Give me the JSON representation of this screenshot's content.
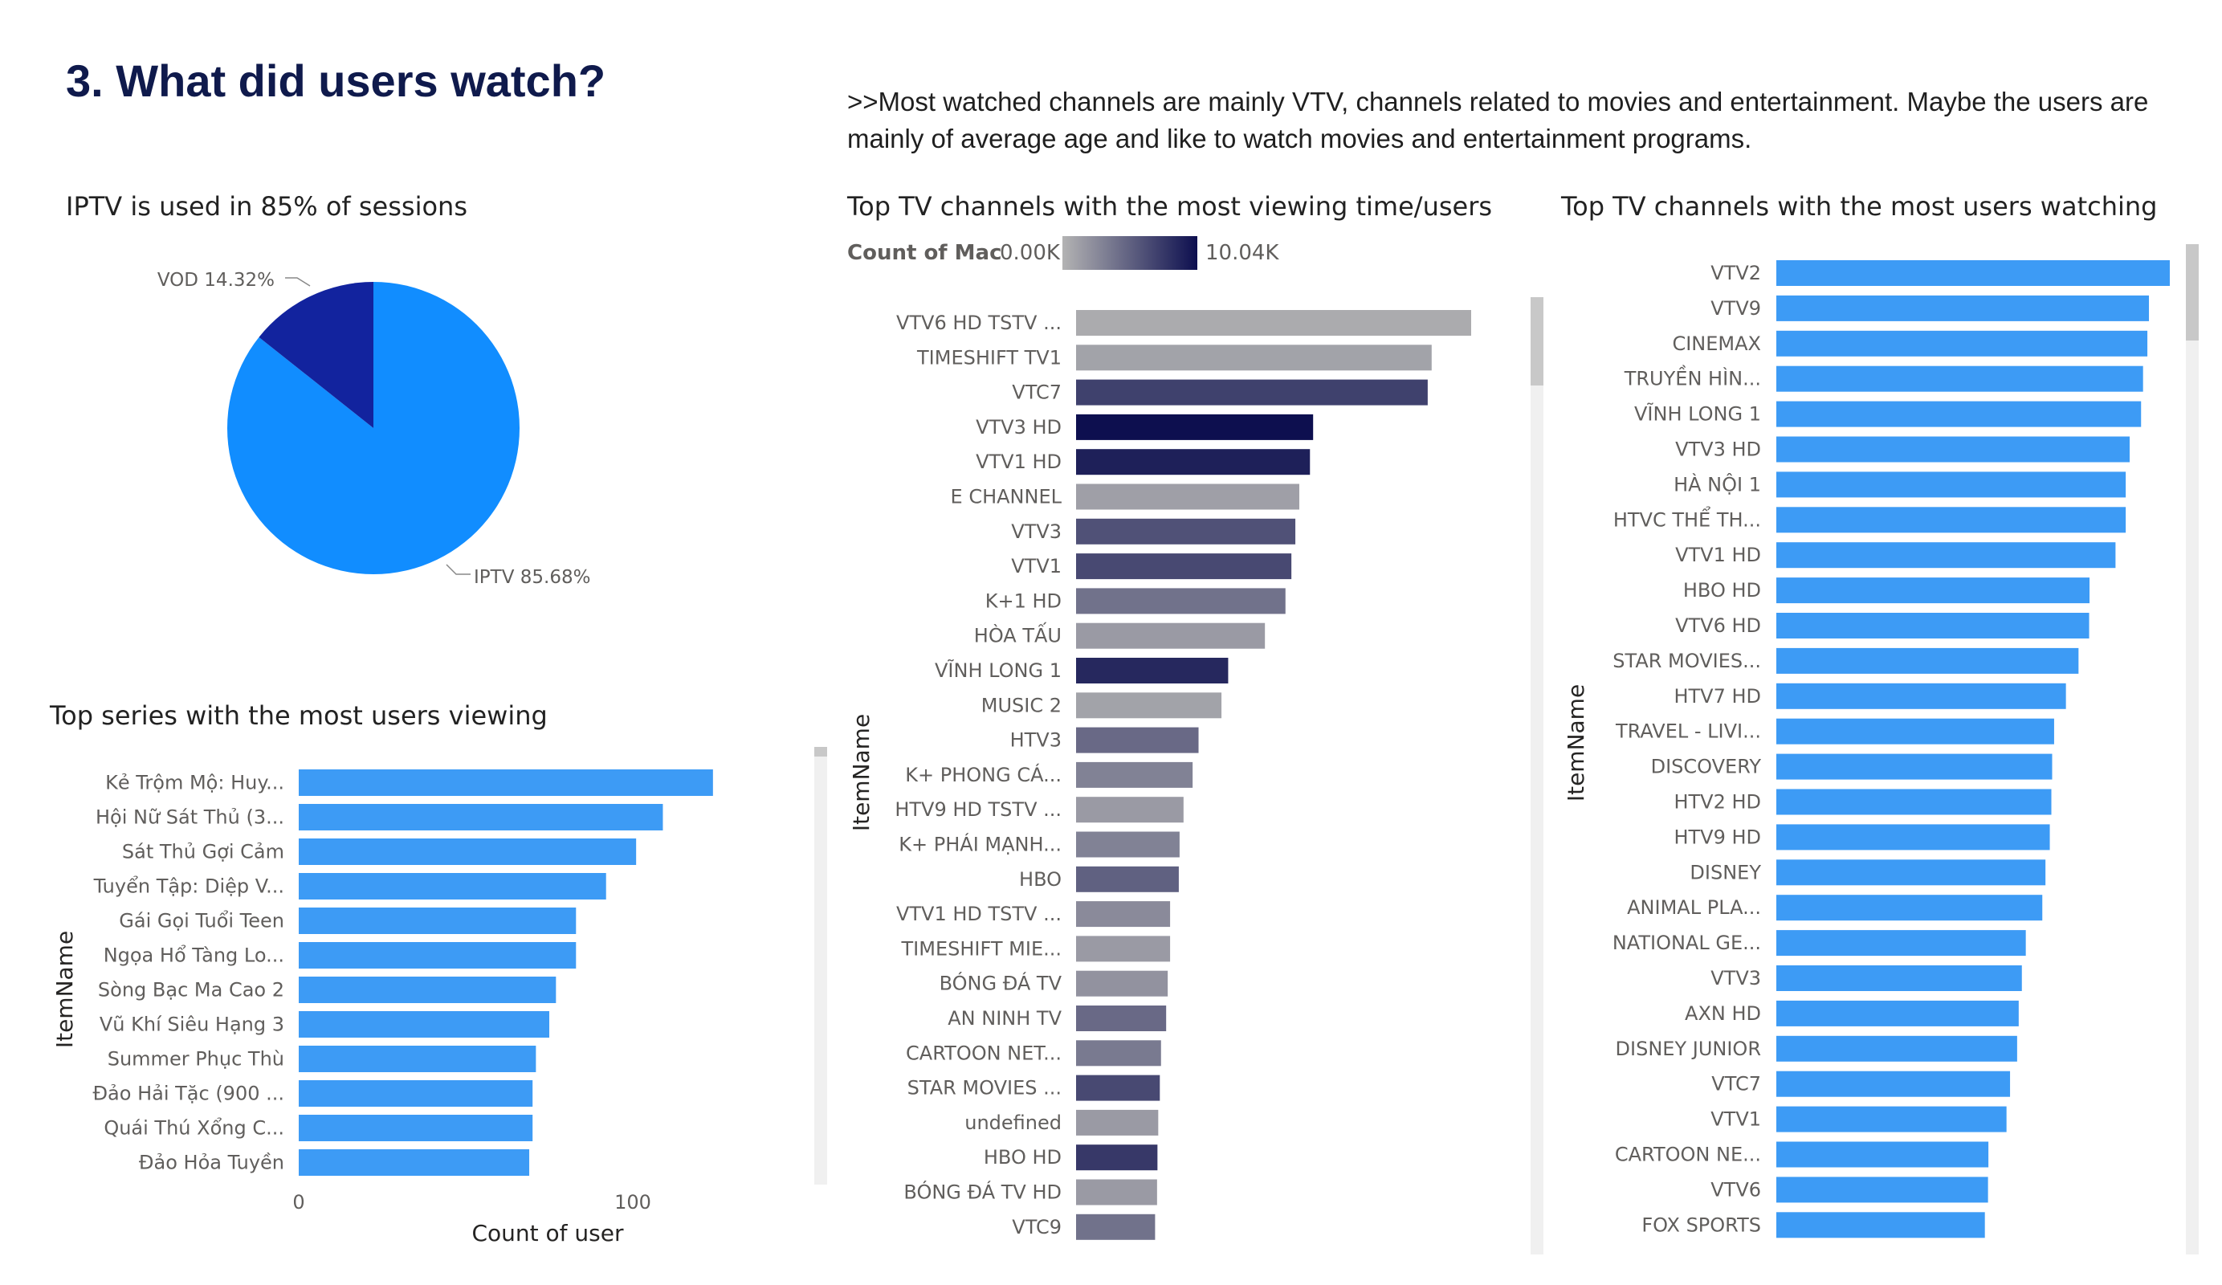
{
  "page": {
    "title": "3. What did users watch?",
    "commentary": ">>Most watched channels are mainly VTV, channels related to movies and entertainment. Maybe the users are mainly of average age and like to watch movies and entertainment programs."
  },
  "colors": {
    "title": "#0f1a4c",
    "bar_blue": "#3d9bf5",
    "pie_iptv": "#118dff",
    "pie_vod": "#12239e",
    "gradient_low": "#b3b3b3",
    "gradient_high": "#0d0f4f",
    "scrollbar_track": "#f0f0f0",
    "scrollbar_thumb": "#c8c8c8"
  },
  "chart_data": [
    {
      "id": "pie",
      "type": "pie",
      "title": "IPTV is used in 85% of sessions",
      "slices": [
        {
          "label": "IPTV",
          "value": 85.68,
          "display": "IPTV 85.68%"
        },
        {
          "label": "VOD",
          "value": 14.32,
          "display": "VOD 14.32%"
        }
      ]
    },
    {
      "id": "series",
      "type": "bar",
      "orientation": "horizontal",
      "title": "Top series with the most users viewing",
      "xlabel": "Count of user",
      "ylabel": "ItemName",
      "xlim": [
        0,
        130
      ],
      "xticks": [
        "0",
        "100"
      ],
      "categories": [
        "Kẻ Trộm Mộ: Huy...",
        "Hội Nữ Sát Thủ (3...",
        "Sát Thủ Gợi Cảm",
        "Tuyển Tập: Diệp V...",
        "Gái Gọi Tuổi Teen",
        "Ngọa Hổ Tàng Lo...",
        "Sòng Bạc Ma Cao 2",
        "Vũ Khí Siêu Hạng 3",
        "Summer Phục Thù",
        "Đảo Hải Tặc (900 ...",
        "Quái Thú Xổng C...",
        "Đảo Hỏa Tuyền"
      ],
      "values": [
        124,
        109,
        101,
        92,
        83,
        83,
        77,
        75,
        71,
        70,
        70,
        69
      ]
    },
    {
      "id": "time",
      "type": "bar",
      "orientation": "horizontal",
      "title": "Top TV channels with the most viewing time/users",
      "ylabel": "ItemName",
      "legend": {
        "label": "Count of Mac",
        "min": "0.00K",
        "max": "10.04K"
      },
      "categories": [
        "VTV6 HD TSTV ...",
        "TIMESHIFT TV1",
        "VTC7",
        "VTV3 HD",
        "VTV1 HD",
        "E CHANNEL",
        "VTV3",
        "VTV1",
        "K+1 HD",
        "HÒA TẤU",
        "VĨNH LONG 1",
        "MUSIC 2",
        "HTV3",
        "K+ PHONG CÁ...",
        "HTV9 HD TSTV ...",
        "K+ PHÁI MẠNH...",
        "HBO",
        "VTV1 HD TSTV ...",
        "TIMESHIFT MIE...",
        "BÓNG ĐÁ TV",
        "AN NINH TV",
        "CARTOON NET...",
        "STAR MOVIES ...",
        "undefined",
        "HBO HD",
        "BÓNG ĐÁ TV HD",
        "VTC9"
      ],
      "values": [
        1000,
        900,
        890,
        600,
        592,
        565,
        555,
        545,
        530,
        478,
        385,
        368,
        310,
        295,
        272,
        262,
        260,
        238,
        238,
        232,
        228,
        215,
        212,
        208,
        206,
        205,
        200
      ],
      "counts": [
        0.5,
        1.0,
        7.0,
        10.04,
        9.0,
        1.2,
        6.0,
        6.5,
        4.0,
        1.5,
        8.5,
        1.0,
        4.5,
        3.0,
        1.5,
        3.0,
        5.0,
        2.5,
        1.5,
        2.0,
        4.5,
        3.5,
        6.5,
        1.5,
        7.5,
        1.5,
        4.0
      ]
    },
    {
      "id": "users",
      "type": "bar",
      "orientation": "horizontal",
      "title": "Top TV channels with the most users watching",
      "ylabel": "ItemName",
      "categories": [
        "VTV2",
        "VTV9",
        "CINEMAX",
        "TRUYỀN HÌN...",
        "VĨNH LONG 1",
        "VTV3 HD",
        "HÀ NỘI 1",
        "HTVC THỂ TH...",
        "VTV1 HD",
        "HBO HD",
        "VTV6 HD",
        "STAR MOVIES...",
        "HTV7 HD",
        "TRAVEL - LIVI...",
        "DISCOVERY",
        "HTV2 HD",
        "HTV9 HD",
        "DISNEY",
        "ANIMAL PLA...",
        "NATIONAL GE...",
        "VTV3",
        "AXN HD",
        "DISNEY JUNIOR",
        "VTC7",
        "VTV1",
        "CARTOON NE...",
        "VTV6",
        "FOX SPORTS"
      ],
      "values": [
        1000,
        947,
        943,
        932,
        927,
        898,
        888,
        888,
        862,
        796,
        795,
        768,
        736,
        706,
        701,
        699,
        695,
        684,
        676,
        634,
        624,
        616,
        612,
        594,
        585,
        539,
        538,
        530
      ]
    }
  ]
}
